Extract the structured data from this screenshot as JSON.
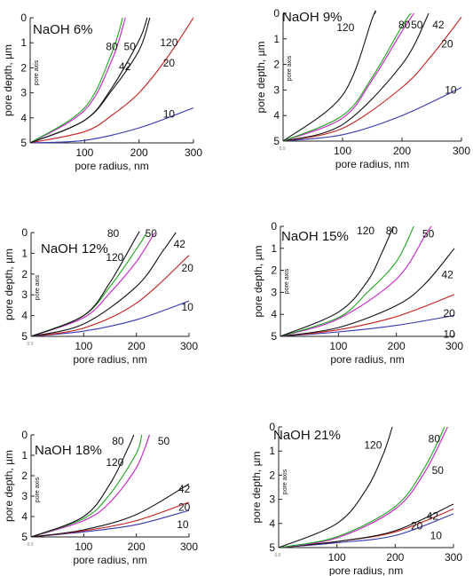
{
  "colors": {
    "10": "#3b3bb8",
    "20": "#cc2222",
    "42": "#111111",
    "50": "#cc22cc",
    "80": "#22aa22",
    "120": "#111111"
  },
  "chart_data": [
    {
      "type": "line",
      "title": "NaOH 6%",
      "xlabel": "pore radius, nm",
      "ylabel": "pore depth, µm",
      "axis_note": "pore axis",
      "xlim": [
        0,
        300
      ],
      "ylim": [
        5,
        0
      ],
      "y_inverted": true,
      "xticks": [
        "100",
        "200",
        "300"
      ],
      "yticks": [
        "0",
        "1",
        "2",
        "3",
        "4",
        "5"
      ],
      "corner_tick": "",
      "series": [
        {
          "name": "10",
          "x": [
            0,
            100,
            200,
            300
          ],
          "y": [
            5.0,
            4.9,
            4.4,
            3.6
          ]
        },
        {
          "name": "20",
          "x": [
            0,
            100,
            150,
            200,
            250,
            300
          ],
          "y": [
            5.0,
            4.55,
            3.9,
            3.0,
            1.65,
            0
          ]
        },
        {
          "name": "42",
          "x": [
            0,
            100,
            150,
            200,
            220
          ],
          "y": [
            5.0,
            4.1,
            2.9,
            1.3,
            0
          ]
        },
        {
          "name": "50",
          "x": [
            0,
            100,
            150,
            175
          ],
          "y": [
            5.0,
            3.7,
            1.7,
            0
          ]
        },
        {
          "name": "80",
          "x": [
            0,
            100,
            150,
            170
          ],
          "y": [
            5.0,
            3.6,
            1.4,
            0
          ]
        },
        {
          "name": "120",
          "x": [
            0,
            100,
            150,
            200,
            215
          ],
          "y": [
            5.0,
            4.1,
            2.8,
            0.9,
            0
          ]
        }
      ]
    },
    {
      "type": "line",
      "title": "NaOH 9%",
      "xlabel": "pore radius, nm",
      "ylabel": "pore depth, µm",
      "axis_note": "pore axis",
      "xlim": [
        0,
        300
      ],
      "ylim": [
        5,
        0
      ],
      "y_inverted": true,
      "xticks": [
        "100",
        "200",
        "300"
      ],
      "yticks": [
        "0",
        "1",
        "2",
        "3",
        "4",
        "5"
      ],
      "corner_tick": "0.0",
      "series": [
        {
          "name": "10",
          "x": [
            0,
            100,
            200,
            300
          ],
          "y": [
            5.0,
            4.75,
            4.0,
            2.9
          ]
        },
        {
          "name": "20",
          "x": [
            0,
            100,
            200,
            250,
            300
          ],
          "y": [
            5.0,
            4.5,
            2.9,
            1.65,
            0.15
          ]
        },
        {
          "name": "42",
          "x": [
            0,
            100,
            200,
            245
          ],
          "y": [
            5.0,
            4.35,
            2.0,
            0
          ]
        },
        {
          "name": "50",
          "x": [
            0,
            100,
            150,
            200,
            220
          ],
          "y": [
            5.0,
            4.1,
            2.6,
            0.7,
            0
          ]
        },
        {
          "name": "80",
          "x": [
            0,
            100,
            150,
            200,
            215
          ],
          "y": [
            5.0,
            4.0,
            2.5,
            0.5,
            0
          ]
        },
        {
          "name": "120",
          "x": [
            0,
            100,
            150,
            155
          ],
          "y": [
            5.0,
            3.2,
            0.2,
            0
          ]
        }
      ]
    },
    {
      "type": "line",
      "title": "NaOH 12%",
      "xlabel": "pore radius, nm",
      "ylabel": "pore depth, µm",
      "axis_note": "pore axis",
      "xlim": [
        0,
        300
      ],
      "ylim": [
        5,
        0
      ],
      "y_inverted": true,
      "xticks": [
        "100",
        "200",
        "300"
      ],
      "yticks": [
        "0",
        "1",
        "2",
        "3",
        "4",
        "5"
      ],
      "corner_tick": "0.0",
      "series": [
        {
          "name": "10",
          "x": [
            0,
            100,
            200,
            300
          ],
          "y": [
            5.0,
            4.75,
            4.2,
            3.3
          ]
        },
        {
          "name": "20",
          "x": [
            0,
            100,
            200,
            300
          ],
          "y": [
            5.0,
            4.6,
            3.4,
            1.1
          ]
        },
        {
          "name": "42",
          "x": [
            0,
            100,
            200,
            250,
            275
          ],
          "y": [
            5.0,
            4.4,
            2.6,
            0.9,
            0
          ]
        },
        {
          "name": "50",
          "x": [
            0,
            100,
            150,
            200,
            235
          ],
          "y": [
            5.0,
            4.1,
            2.9,
            1.4,
            0
          ]
        },
        {
          "name": "80",
          "x": [
            0,
            100,
            150,
            200,
            220
          ],
          "y": [
            5.0,
            4.0,
            2.6,
            0.8,
            0
          ]
        },
        {
          "name": "120",
          "x": [
            0,
            100,
            150,
            200,
            205
          ],
          "y": [
            5.0,
            4.0,
            2.4,
            0.2,
            0
          ]
        }
      ]
    },
    {
      "type": "line",
      "title": "NaOH 15%",
      "xlabel": "pore radius, nm",
      "ylabel": "pore depth, µm",
      "axis_note": "pore axis",
      "xlim": [
        0,
        300
      ],
      "ylim": [
        5,
        0
      ],
      "y_inverted": true,
      "xticks": [
        "100",
        "200",
        "300"
      ],
      "yticks": [
        "0",
        "1",
        "2",
        "3",
        "4",
        "5"
      ],
      "corner_tick": "",
      "series": [
        {
          "name": "10",
          "x": [
            0,
            100,
            200,
            300
          ],
          "y": [
            5.0,
            4.8,
            4.5,
            4.05
          ]
        },
        {
          "name": "20",
          "x": [
            0,
            100,
            200,
            300
          ],
          "y": [
            5.0,
            4.7,
            4.1,
            3.1
          ]
        },
        {
          "name": "42",
          "x": [
            0,
            100,
            200,
            250,
            300
          ],
          "y": [
            5.0,
            4.6,
            3.6,
            2.6,
            1.0
          ]
        },
        {
          "name": "50",
          "x": [
            0,
            100,
            200,
            250,
            260
          ],
          "y": [
            5.0,
            4.2,
            2.4,
            0.4,
            0
          ]
        },
        {
          "name": "80",
          "x": [
            0,
            100,
            150,
            200,
            230
          ],
          "y": [
            5.0,
            4.15,
            3.0,
            1.6,
            0
          ]
        },
        {
          "name": "120",
          "x": [
            0,
            100,
            150,
            175,
            195
          ],
          "y": [
            5.0,
            3.9,
            2.5,
            1.2,
            0
          ]
        }
      ]
    },
    {
      "type": "line",
      "title": "NaOH 18%",
      "xlabel": "pore radius, nm",
      "ylabel": "pore depth, µm",
      "axis_note": "pore axis",
      "xlim": [
        0,
        300
      ],
      "ylim": [
        5,
        0
      ],
      "y_inverted": true,
      "xticks": [
        "100",
        "200",
        "300"
      ],
      "yticks": [
        "0",
        "1",
        "2",
        "3",
        "4",
        "5"
      ],
      "corner_tick": "0.0",
      "series": [
        {
          "name": "10",
          "x": [
            0,
            100,
            200,
            300
          ],
          "y": [
            5.0,
            4.75,
            4.4,
            3.7
          ]
        },
        {
          "name": "20",
          "x": [
            0,
            100,
            200,
            300
          ],
          "y": [
            5.0,
            4.7,
            4.2,
            3.3
          ]
        },
        {
          "name": "42",
          "x": [
            0,
            100,
            200,
            300
          ],
          "y": [
            5.0,
            4.65,
            3.9,
            2.4
          ]
        },
        {
          "name": "50",
          "x": [
            0,
            100,
            150,
            200,
            225
          ],
          "y": [
            5.0,
            4.2,
            3.3,
            1.6,
            0
          ]
        },
        {
          "name": "80",
          "x": [
            0,
            100,
            150,
            200,
            210
          ],
          "y": [
            5.0,
            4.1,
            2.9,
            0.9,
            0
          ]
        },
        {
          "name": "120",
          "x": [
            0,
            100,
            150,
            185,
            195
          ],
          "y": [
            5.0,
            4.0,
            2.4,
            0.6,
            0
          ]
        }
      ]
    },
    {
      "type": "line",
      "title": "NaOH 21%",
      "xlabel": "pore radius, nm",
      "ylabel": "pore depth, µm",
      "axis_note": "pore axis",
      "xlim": [
        0,
        300
      ],
      "ylim": [
        5,
        0
      ],
      "y_inverted": true,
      "xticks": [
        "100",
        "200",
        "300"
      ],
      "yticks": [
        "0",
        "1",
        "2",
        "3",
        "4",
        "5"
      ],
      "corner_tick": "0.0",
      "series": [
        {
          "name": "10",
          "x": [
            0,
            100,
            200,
            300
          ],
          "y": [
            5.0,
            4.8,
            4.5,
            3.6
          ]
        },
        {
          "name": "20",
          "x": [
            0,
            100,
            200,
            300
          ],
          "y": [
            5.0,
            4.75,
            4.35,
            3.4
          ]
        },
        {
          "name": "42",
          "x": [
            0,
            100,
            200,
            300
          ],
          "y": [
            5.0,
            4.75,
            4.3,
            3.2
          ]
        },
        {
          "name": "50",
          "x": [
            0,
            100,
            200,
            250,
            290
          ],
          "y": [
            5.0,
            4.6,
            3.4,
            1.9,
            0
          ]
        },
        {
          "name": "80",
          "x": [
            0,
            100,
            200,
            250,
            285
          ],
          "y": [
            5.0,
            4.55,
            3.3,
            1.7,
            0
          ]
        },
        {
          "name": "120",
          "x": [
            0,
            100,
            150,
            180,
            195
          ],
          "y": [
            5.0,
            4.0,
            2.6,
            1.1,
            0
          ]
        }
      ]
    }
  ]
}
